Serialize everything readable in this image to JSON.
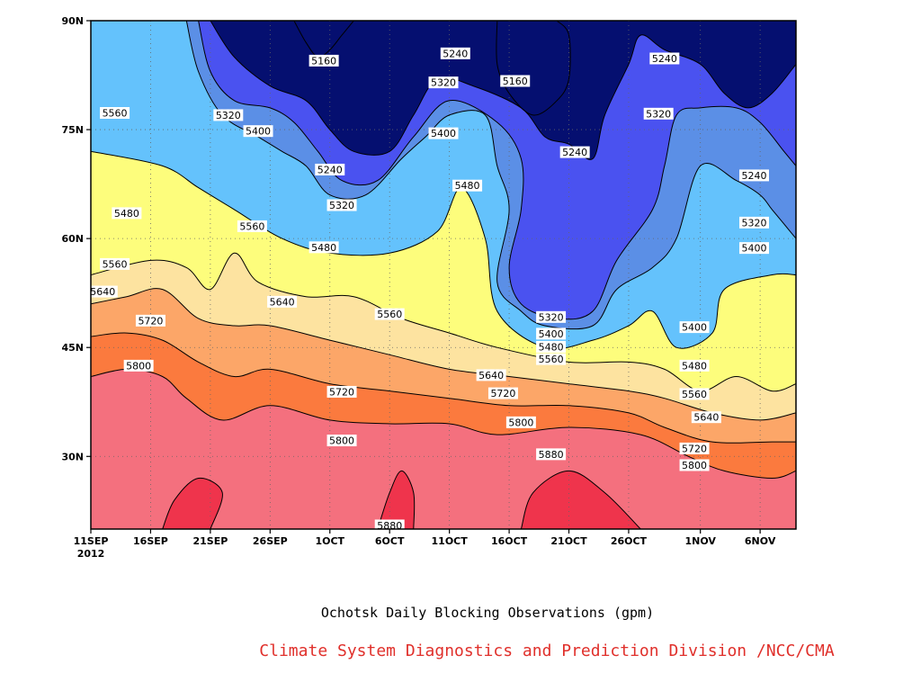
{
  "chart_data": {
    "type": "heatmap",
    "caption": "Ochotsk Daily Blocking Observations (gpm)",
    "credit": "Climate System Diagnostics and Prediction Division /NCC/CMA",
    "x_axis": {
      "ticks": [
        "11SEP",
        "16SEP",
        "21SEP",
        "26SEP",
        "1OCT",
        "6OCT",
        "11OCT",
        "16OCT",
        "21OCT",
        "26OCT",
        "1NOV",
        "6NOV"
      ],
      "tick_days": [
        0,
        5,
        10,
        15,
        20,
        25,
        30,
        35,
        40,
        45,
        51,
        56
      ],
      "year_label": "2012",
      "range_days": [
        0,
        59
      ]
    },
    "y_axis": {
      "ticks": [
        "30N",
        "45N",
        "60N",
        "75N",
        "90N"
      ],
      "tick_values": [
        30,
        45,
        60,
        75,
        90
      ],
      "range": [
        20,
        90
      ]
    },
    "grid": "dotted",
    "contour_levels": [
      5160,
      5240,
      5320,
      5400,
      5480,
      5560,
      5640,
      5720,
      5800,
      5880
    ],
    "fill_colors": [
      "#050f70",
      "#0a1ad6",
      "#4a52f0",
      "#5b8fe6",
      "#64c2fc",
      "#fdfd7c",
      "#fde3a0",
      "#fca668",
      "#fb7a3e",
      "#f4707e",
      "#ef344c"
    ],
    "contours": [
      {
        "level": 5880,
        "points": [
          [
            6,
            20
          ],
          [
            7,
            24
          ],
          [
            9,
            27
          ],
          [
            11,
            25
          ],
          [
            10,
            20
          ]
        ]
      },
      {
        "level": 5880,
        "points": [
          [
            24,
            20
          ],
          [
            25,
            25
          ],
          [
            26,
            28
          ],
          [
            27,
            25
          ],
          [
            27,
            20
          ]
        ]
      },
      {
        "level": 5880,
        "points": [
          [
            36,
            20
          ],
          [
            37,
            25
          ],
          [
            40,
            28
          ],
          [
            43,
            25
          ],
          [
            46,
            20
          ]
        ]
      },
      {
        "level": 5800,
        "points": [
          [
            0,
            41
          ],
          [
            3,
            42
          ],
          [
            6,
            41
          ],
          [
            8,
            38
          ],
          [
            11,
            35
          ],
          [
            15,
            37
          ],
          [
            20,
            35
          ],
          [
            25,
            34.5
          ],
          [
            30,
            34.5
          ],
          [
            34,
            33
          ],
          [
            40,
            34
          ],
          [
            46,
            33
          ],
          [
            50,
            30
          ],
          [
            53,
            28
          ],
          [
            57,
            27
          ],
          [
            59,
            28
          ]
        ]
      },
      {
        "level": 5720,
        "points": [
          [
            0,
            46.5
          ],
          [
            3,
            47
          ],
          [
            6,
            46
          ],
          [
            9,
            43
          ],
          [
            12,
            41
          ],
          [
            15,
            42
          ],
          [
            20,
            40
          ],
          [
            25,
            39
          ],
          [
            30,
            38
          ],
          [
            35,
            37
          ],
          [
            40,
            37
          ],
          [
            45,
            36
          ],
          [
            48,
            34
          ],
          [
            52,
            32
          ],
          [
            57,
            32
          ],
          [
            59,
            32
          ]
        ]
      },
      {
        "level": 5640,
        "points": [
          [
            0,
            51
          ],
          [
            3,
            52
          ],
          [
            6,
            53
          ],
          [
            9,
            49
          ],
          [
            12,
            48
          ],
          [
            15,
            48
          ],
          [
            20,
            46
          ],
          [
            25,
            44
          ],
          [
            30,
            42
          ],
          [
            35,
            41
          ],
          [
            40,
            40
          ],
          [
            45,
            39
          ],
          [
            48,
            38
          ],
          [
            52,
            36
          ],
          [
            56,
            35
          ],
          [
            59,
            36
          ]
        ]
      },
      {
        "level": 5560,
        "points": [
          [
            0,
            55
          ],
          [
            5,
            57
          ],
          [
            8,
            56
          ],
          [
            10,
            53
          ],
          [
            12,
            58
          ],
          [
            14,
            54
          ],
          [
            18,
            52
          ],
          [
            22,
            52
          ],
          [
            26,
            49
          ],
          [
            30,
            47
          ],
          [
            34,
            45
          ],
          [
            40,
            43
          ],
          [
            45,
            43
          ],
          [
            48,
            42
          ],
          [
            51,
            39
          ],
          [
            54,
            41
          ],
          [
            57,
            39
          ],
          [
            59,
            40
          ]
        ]
      },
      {
        "level": 5480,
        "points": [
          [
            0,
            72
          ],
          [
            6,
            70
          ],
          [
            9,
            67
          ],
          [
            12,
            64
          ],
          [
            16,
            60
          ],
          [
            20,
            58
          ],
          [
            25,
            58
          ],
          [
            29,
            61
          ],
          [
            31,
            67
          ],
          [
            33,
            60
          ],
          [
            34,
            50
          ],
          [
            38,
            45
          ],
          [
            42,
            46
          ],
          [
            45,
            48
          ],
          [
            47,
            50
          ],
          [
            49,
            45
          ],
          [
            52,
            47
          ],
          [
            53,
            53
          ],
          [
            57,
            55
          ],
          [
            59,
            55
          ]
        ]
      },
      {
        "level": 5400,
        "points": [
          [
            8,
            90
          ],
          [
            9,
            83
          ],
          [
            11,
            77
          ],
          [
            14,
            74
          ],
          [
            16,
            72
          ],
          [
            18,
            70
          ],
          [
            20,
            66
          ],
          [
            23,
            66
          ],
          [
            26,
            71
          ],
          [
            28,
            74
          ],
          [
            30,
            77
          ],
          [
            33,
            77
          ],
          [
            34,
            70
          ],
          [
            35,
            64
          ],
          [
            34,
            54
          ],
          [
            36,
            50
          ],
          [
            38,
            48
          ],
          [
            42,
            48
          ],
          [
            44,
            53
          ],
          [
            47,
            56
          ],
          [
            49,
            60
          ],
          [
            51,
            70
          ],
          [
            54,
            68
          ],
          [
            56,
            66
          ],
          [
            57,
            64
          ],
          [
            59,
            60
          ]
        ]
      },
      {
        "level": 5320,
        "points": [
          [
            9,
            90
          ],
          [
            10,
            83
          ],
          [
            12,
            79
          ],
          [
            15,
            78
          ],
          [
            17,
            76
          ],
          [
            19,
            72
          ],
          [
            21,
            68
          ],
          [
            24,
            68
          ],
          [
            27,
            74
          ],
          [
            30,
            79
          ],
          [
            34,
            76
          ],
          [
            36,
            71
          ],
          [
            36,
            64
          ],
          [
            35,
            56
          ],
          [
            36,
            51
          ],
          [
            39,
            49
          ],
          [
            42,
            50
          ],
          [
            44,
            57
          ],
          [
            47,
            64
          ],
          [
            48,
            70
          ],
          [
            49,
            77
          ],
          [
            51,
            78
          ],
          [
            54,
            78
          ],
          [
            56,
            76
          ],
          [
            58,
            72
          ],
          [
            59,
            70
          ]
        ]
      },
      {
        "level": 5240,
        "points": [
          [
            10,
            90
          ],
          [
            12,
            85
          ],
          [
            15,
            81
          ],
          [
            18,
            79
          ],
          [
            20,
            75
          ],
          [
            22,
            72
          ],
          [
            25,
            72
          ],
          [
            27,
            77
          ],
          [
            29,
            82
          ],
          [
            32,
            81
          ],
          [
            36,
            78
          ],
          [
            38,
            74
          ],
          [
            40,
            73
          ],
          [
            42,
            71
          ],
          [
            43,
            77
          ],
          [
            45,
            84
          ],
          [
            46,
            88
          ],
          [
            48,
            86
          ],
          [
            51,
            84
          ],
          [
            53,
            80
          ],
          [
            55,
            78
          ],
          [
            57,
            80
          ],
          [
            59,
            84
          ]
        ]
      },
      {
        "level": 5160,
        "points": [
          [
            17,
            90
          ],
          [
            18,
            87
          ],
          [
            19,
            85
          ],
          [
            20,
            86
          ],
          [
            21,
            88
          ],
          [
            22,
            90
          ]
        ]
      },
      {
        "level": 5160,
        "points": [
          [
            34,
            90
          ],
          [
            34,
            84
          ],
          [
            35,
            80
          ],
          [
            37,
            77
          ],
          [
            39,
            79
          ],
          [
            40,
            82
          ],
          [
            40,
            88
          ],
          [
            39,
            90
          ]
        ]
      }
    ],
    "labels": [
      {
        "text": "5160",
        "day": 19.5,
        "lat": 84.5
      },
      {
        "text": "5240",
        "day": 30.5,
        "lat": 85.5
      },
      {
        "text": "5320",
        "day": 29.5,
        "lat": 81.5
      },
      {
        "text": "5160",
        "day": 35.5,
        "lat": 81.7
      },
      {
        "text": "5240",
        "day": 48,
        "lat": 84.8
      },
      {
        "text": "5320",
        "day": 11.5,
        "lat": 77
      },
      {
        "text": "5400",
        "day": 14,
        "lat": 74.8
      },
      {
        "text": "5240",
        "day": 20,
        "lat": 69.5
      },
      {
        "text": "5320",
        "day": 21,
        "lat": 64.6
      },
      {
        "text": "5400",
        "day": 29.5,
        "lat": 74.5
      },
      {
        "text": "5480",
        "day": 31.5,
        "lat": 67.3
      },
      {
        "text": "5240",
        "day": 40.5,
        "lat": 71.9
      },
      {
        "text": "5320",
        "day": 47.5,
        "lat": 77.2
      },
      {
        "text": "5240",
        "day": 55.5,
        "lat": 68.7
      },
      {
        "text": "5320",
        "day": 55.5,
        "lat": 62.2
      },
      {
        "text": "5400",
        "day": 55.5,
        "lat": 58.7
      },
      {
        "text": "5560",
        "day": 2,
        "lat": 77.3
      },
      {
        "text": "5480",
        "day": 3,
        "lat": 63.5
      },
      {
        "text": "5560",
        "day": 13.5,
        "lat": 61.7
      },
      {
        "text": "5560",
        "day": 2,
        "lat": 56.5
      },
      {
        "text": "5480",
        "day": 19.5,
        "lat": 58.8
      },
      {
        "text": "5640",
        "day": 1,
        "lat": 52.7
      },
      {
        "text": "5720",
        "day": 5,
        "lat": 48.7
      },
      {
        "text": "5640",
        "day": 16,
        "lat": 51.3
      },
      {
        "text": "5560",
        "day": 25,
        "lat": 49.6
      },
      {
        "text": "5800",
        "day": 4,
        "lat": 42.5
      },
      {
        "text": "5720",
        "day": 21,
        "lat": 38.9
      },
      {
        "text": "5800",
        "day": 21,
        "lat": 32.2
      },
      {
        "text": "5880",
        "day": 25,
        "lat": 20.5
      },
      {
        "text": "5320",
        "day": 38.5,
        "lat": 49.2
      },
      {
        "text": "5400",
        "day": 38.5,
        "lat": 46.9
      },
      {
        "text": "5480",
        "day": 38.5,
        "lat": 45.1
      },
      {
        "text": "5560",
        "day": 38.5,
        "lat": 43.4
      },
      {
        "text": "5640",
        "day": 33.5,
        "lat": 41.2
      },
      {
        "text": "5720",
        "day": 34.5,
        "lat": 38.7
      },
      {
        "text": "5800",
        "day": 36,
        "lat": 34.7
      },
      {
        "text": "5880",
        "day": 38.5,
        "lat": 30.3
      },
      {
        "text": "5400",
        "day": 50.5,
        "lat": 47.8
      },
      {
        "text": "5480",
        "day": 50.5,
        "lat": 42.5
      },
      {
        "text": "5560",
        "day": 50.5,
        "lat": 38.6
      },
      {
        "text": "5640",
        "day": 51.5,
        "lat": 35.4
      },
      {
        "text": "5720",
        "day": 50.5,
        "lat": 31.1
      },
      {
        "text": "5800",
        "day": 50.5,
        "lat": 28.8
      }
    ]
  }
}
